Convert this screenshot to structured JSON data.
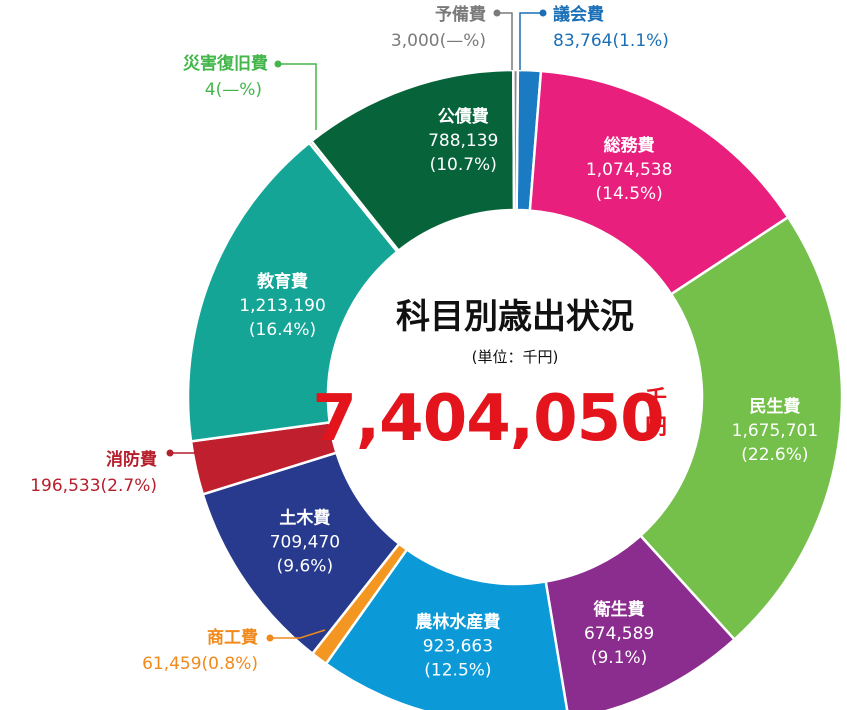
{
  "chart_data": {
    "type": "pie",
    "title": "科目別歳出状況",
    "unit_label": "(単位：千円)",
    "total": {
      "value": "7,404,050",
      "suffix_1": "千",
      "suffix_2": "円"
    },
    "slices": [
      {
        "name": "議会費",
        "value": 83764,
        "value_label": "83,764",
        "pct_label": "(1.1%)",
        "color": "#1a7ac2",
        "label_outside": true,
        "text_color": "#1a6fb7"
      },
      {
        "name": "総務費",
        "value": 1074538,
        "value_label": "1,074,538",
        "pct_label": "(14.5%)",
        "color": "#e81f7d",
        "label_outside": false
      },
      {
        "name": "民生費",
        "value": 1675701,
        "value_label": "1,675,701",
        "pct_label": "(22.6%)",
        "color": "#74c04b",
        "label_outside": false
      },
      {
        "name": "衛生費",
        "value": 674589,
        "value_label": "674,589",
        "pct_label": "(9.1%)",
        "color": "#8b2d8e",
        "label_outside": false
      },
      {
        "name": "農林水産費",
        "value": 923663,
        "value_label": "923,663",
        "pct_label": "(12.5%)",
        "color": "#0b9ad7",
        "label_outside": false
      },
      {
        "name": "商工費",
        "value": 61459,
        "value_label": "61,459",
        "pct_label": "(0.8%)",
        "color": "#f39722",
        "label_outside": true,
        "text_color": "#f08a1c"
      },
      {
        "name": "土木費",
        "value": 709470,
        "value_label": "709,470",
        "pct_label": "(9.6%)",
        "color": "#283a8e",
        "label_outside": false
      },
      {
        "name": "消防費",
        "value": 196533,
        "value_label": "196,533",
        "pct_label": "(2.7%)",
        "color": "#c0202d",
        "label_outside": true,
        "text_color": "#b51f2b"
      },
      {
        "name": "教育費",
        "value": 1213190,
        "value_label": "1,213,190",
        "pct_label": "(16.4%)",
        "color": "#14a596",
        "label_outside": false
      },
      {
        "name": "災害復旧費",
        "value": 4,
        "value_label": "4",
        "pct_label": "(—%)",
        "color": "#46b64a",
        "label_outside": true,
        "text_color": "#43b649"
      },
      {
        "name": "公債費",
        "value": 788139,
        "value_label": "788,139",
        "pct_label": "(10.7%)",
        "color": "#07643a",
        "label_outside": false
      },
      {
        "name": "予備費",
        "value": 3000,
        "value_label": "3,000",
        "pct_label": "(—%)",
        "color": "#8a8a8a",
        "label_outside": true,
        "text_color": "#7a7a7a"
      }
    ]
  }
}
